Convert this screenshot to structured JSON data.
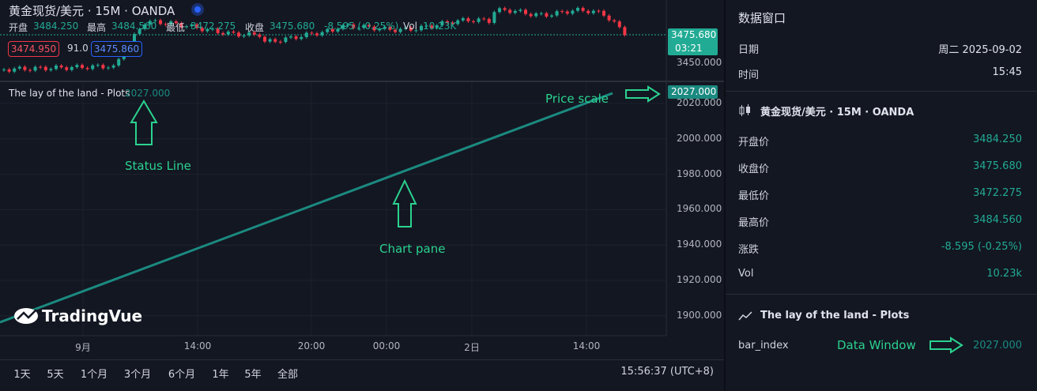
{
  "symbol_header": {
    "title": "黄金现货/美元 · 15M · OANDA",
    "ohlc": [
      {
        "label": "开盘",
        "value": "3484.250"
      },
      {
        "label": "最高",
        "value": "3484.560"
      },
      {
        "label": "最低",
        "value": "3472.275"
      },
      {
        "label": "收盘",
        "value": "3475.680"
      }
    ],
    "change": "-8.595 (-0.25%)",
    "vol": {
      "label": "Vol",
      "value": "10.23K"
    },
    "order_buttons": [
      "3474.950",
      "91.0",
      "3475.860"
    ]
  },
  "top_price_scale": {
    "last_price": "3475.680",
    "countdown": "03:21",
    "tick": "3450.000"
  },
  "indicator_pane": {
    "status_title": "The lay of the land - Plots",
    "status_value": "2027.000",
    "price_label": "2027.000",
    "ticks": [
      "2020.000",
      "2000.000",
      "1980.000",
      "1960.000",
      "1940.000",
      "1920.000",
      "1900.000"
    ],
    "watermark": "TradingVue"
  },
  "annotations": {
    "status_line": "Status Line",
    "chart_pane": "Chart pane",
    "price_scale": "Price scale",
    "data_window": "Data Window"
  },
  "time_axis": [
    "9月",
    "14:00",
    "20:00",
    "00:00",
    "2日",
    "14:00"
  ],
  "range_buttons": [
    "1天",
    "5天",
    "1个月",
    "3个月",
    "6个月",
    "1年",
    "5年",
    "全部"
  ],
  "clock": "15:56:37 (UTC+8)",
  "data_window": {
    "title": "数据窗口",
    "date": {
      "label": "日期",
      "value": "周二 2025-09-02"
    },
    "time": {
      "label": "时间",
      "value": "15:45"
    },
    "symbol": "黄金现货/美元 · 15M · OANDA",
    "rows": [
      {
        "label": "开盘价",
        "value": "3484.250"
      },
      {
        "label": "收盘价",
        "value": "3475.680"
      },
      {
        "label": "最低价",
        "value": "3472.275"
      },
      {
        "label": "最高价",
        "value": "3484.560"
      },
      {
        "label": "涨跌",
        "value": "-8.595 (-0.25%)"
      },
      {
        "label": "Vol",
        "value": "10.23k"
      }
    ],
    "plots_title": "The lay of the land - Plots",
    "plot_row": {
      "label": "bar_index",
      "value": "2027.000"
    }
  }
}
